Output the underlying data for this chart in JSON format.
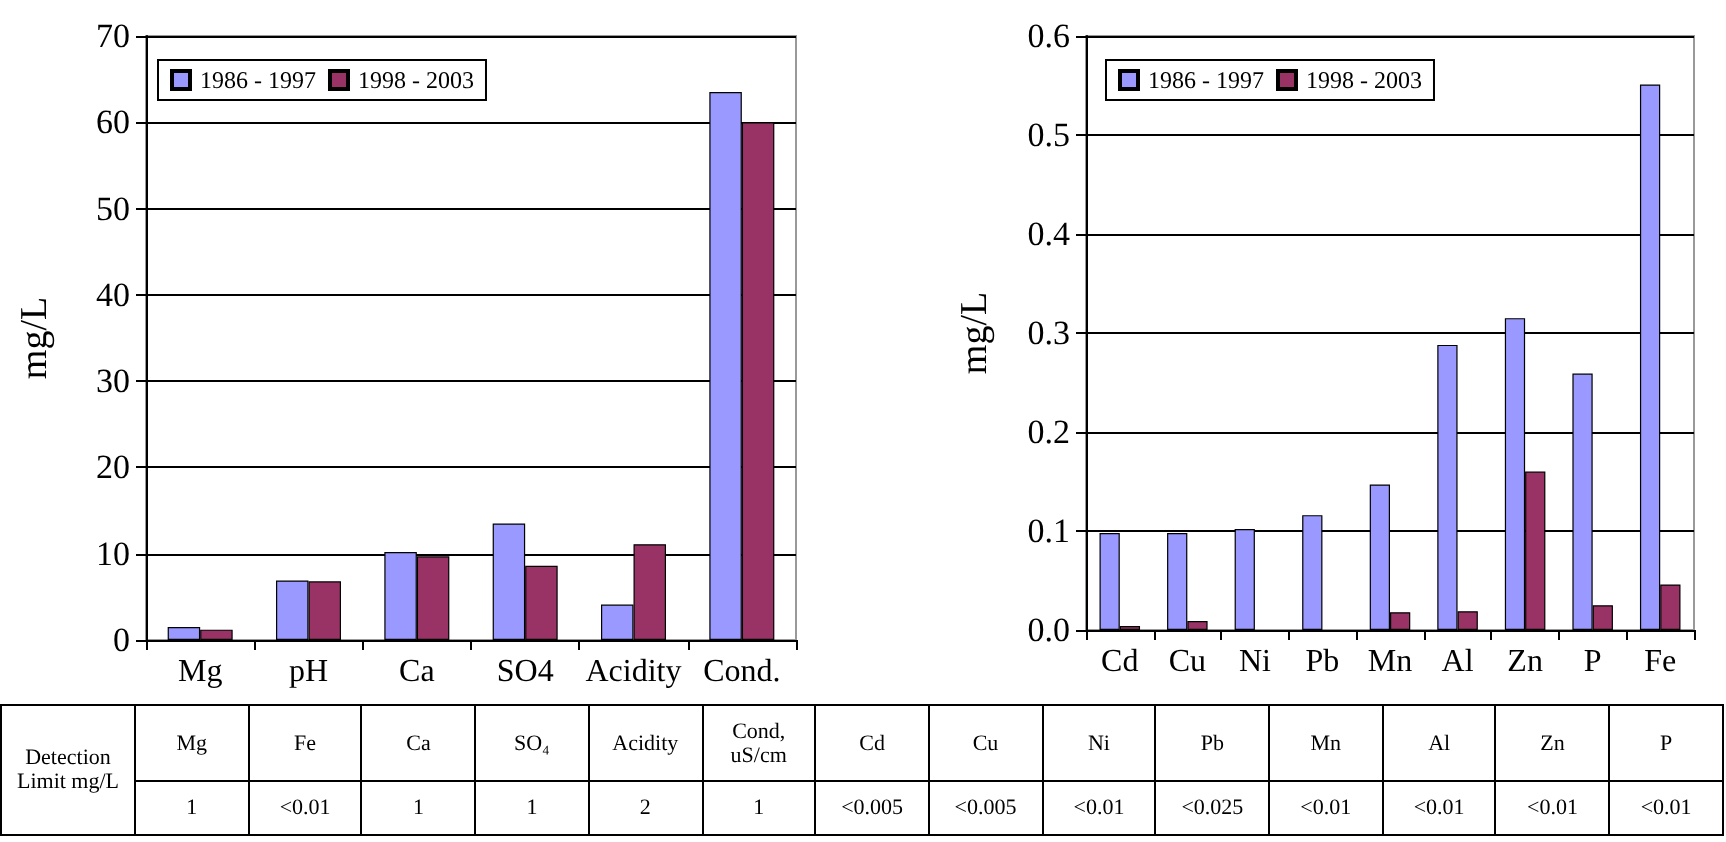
{
  "chart_data": [
    {
      "type": "bar",
      "ylabel": "mg/L",
      "categories": [
        "Mg",
        "pH",
        "Ca",
        "SO4",
        "Acidity",
        "Cond."
      ],
      "series": [
        {
          "name": "1986 - 1997",
          "color": "#9999ff",
          "values": [
            1.5,
            6.9,
            10.2,
            13.5,
            4.1,
            63.5
          ]
        },
        {
          "name": "1998 - 2003",
          "color": "#993366",
          "values": [
            1.2,
            6.8,
            9.7,
            8.6,
            11.1,
            60.0
          ]
        }
      ],
      "ylim": [
        0,
        70
      ],
      "yticks": [
        0,
        10,
        20,
        30,
        40,
        50,
        60,
        70
      ],
      "grid": "y",
      "legend": "top left"
    },
    {
      "type": "bar",
      "ylabel": "mg/L",
      "categories": [
        "Cd",
        "Cu",
        "Ni",
        "Pb",
        "Mn",
        "Al",
        "Zn",
        "P",
        "Fe"
      ],
      "series": [
        {
          "name": "1986 - 1997",
          "color": "#9999ff",
          "values": [
            0.098,
            0.098,
            0.102,
            0.116,
            0.147,
            0.288,
            0.315,
            0.259,
            0.551
          ]
        },
        {
          "name": "1998 - 2003",
          "color": "#993366",
          "values": [
            0.004,
            0.009,
            null,
            null,
            0.018,
            0.019,
            0.16,
            0.025,
            0.046
          ]
        }
      ],
      "ylim": [
        0,
        0.6
      ],
      "yticks": [
        {
          "value": 0,
          "label": "0.0"
        },
        {
          "value": 0.1,
          "label": "0.1"
        },
        {
          "value": 0.2,
          "label": "0.2"
        },
        {
          "value": 0.3,
          "label": "0.3"
        },
        {
          "value": 0.4,
          "label": "0.4"
        },
        {
          "value": 0.5,
          "label": "0.5"
        },
        {
          "value": 0.6,
          "label": "0.6"
        }
      ],
      "grid": "y",
      "legend": "top left"
    },
    {
      "type": "other",
      "title": "Detection Limit mg/L",
      "categories": [
        "Mg",
        "Fe",
        "Ca",
        "SO₄",
        "Acidity",
        "Cond, uS/cm",
        "Cd",
        "Cu",
        "Ni",
        "Pb",
        "Mn",
        "Al",
        "Zn",
        "P"
      ],
      "value_labels": [
        "1",
        "<0.01",
        "1",
        "1",
        "2",
        "1",
        "<0.005",
        "<0.005",
        "<0.01",
        "<0.025",
        "<0.01",
        "<0.01",
        "<0.01",
        "<0.01"
      ]
    }
  ]
}
